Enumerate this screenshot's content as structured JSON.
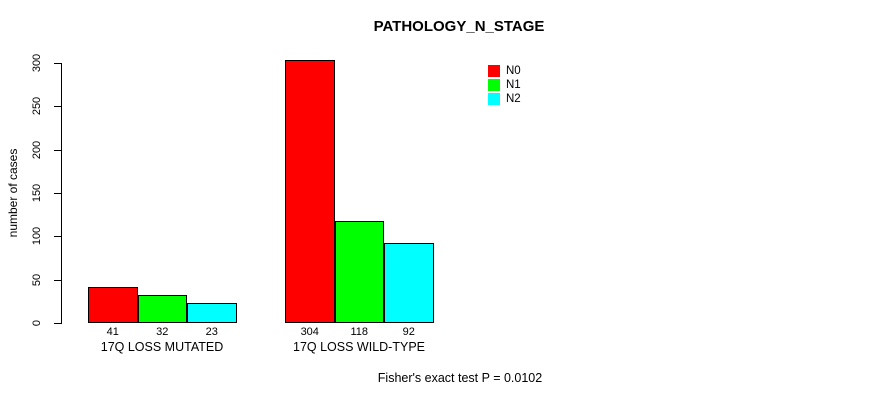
{
  "chart_data": {
    "type": "bar",
    "title": "PATHOLOGY_N_STAGE",
    "xlabel": "",
    "ylabel": "number of cases",
    "ylim": [
      0,
      300
    ],
    "yticks": [
      0,
      50,
      100,
      150,
      200,
      250,
      300
    ],
    "grid": false,
    "legend_position": "top-right",
    "categories": [
      "17Q LOSS MUTATED",
      "17Q LOSS WILD-TYPE"
    ],
    "series": [
      {
        "name": "N0",
        "color": "#ff0000",
        "values": [
          41,
          304
        ]
      },
      {
        "name": "N1",
        "color": "#00ff00",
        "values": [
          32,
          118
        ]
      },
      {
        "name": "N2",
        "color": "#00ffff",
        "values": [
          23,
          92
        ]
      }
    ],
    "bar_value_labels": [
      [
        "41",
        "32",
        "23"
      ],
      [
        "304",
        "118",
        "92"
      ]
    ],
    "annotation": "Fisher's exact test P = 0.0102"
  }
}
